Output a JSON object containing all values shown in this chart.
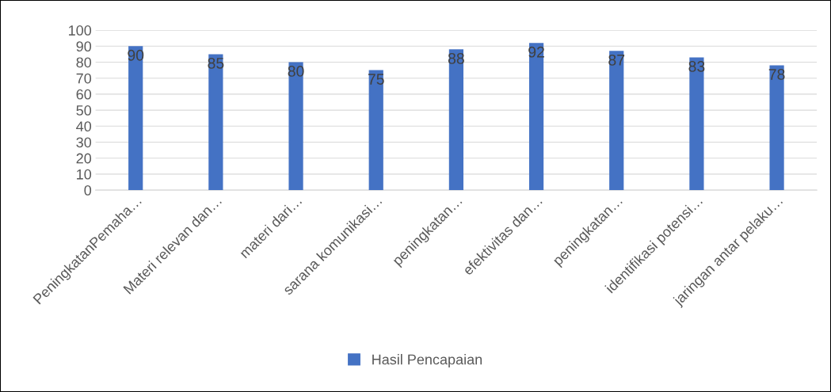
{
  "chart_data": {
    "type": "bar",
    "categories": [
      "PeningkatanPemaha…",
      "Materi relevan dan…",
      "materi dari…",
      "sarana komunikasi…",
      "peningkatan…",
      "efektivitas dan…",
      "peningkatan…",
      "identifikasi potensi…",
      "jaringan antar pelaku…"
    ],
    "series": [
      {
        "name": "Hasil Pencapaian",
        "color": "#4472c4",
        "values": [
          90,
          85,
          80,
          75,
          88,
          92,
          87,
          83,
          78
        ]
      }
    ],
    "ylim": [
      0,
      100
    ],
    "yticks": [
      0,
      10,
      20,
      30,
      40,
      50,
      60,
      70,
      80,
      90,
      100
    ],
    "grid": "y",
    "legend": "bottom",
    "data_labels": true
  }
}
